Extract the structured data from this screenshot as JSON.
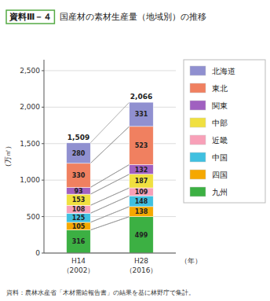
{
  "chart_data": {
    "type": "bar",
    "stacked": true,
    "data_labels": true,
    "grid": true,
    "legend": "right",
    "title": "国産材の素材生産量（地域別）の推移",
    "title_label": "資料Ⅲ－４",
    "ylabel": "（万㎥）",
    "xlabel": "（年）",
    "source": "資料：農林水産省「木材需給報告書」の結果を基に林野庁で集計。",
    "categories": [
      "H14\n（2002）",
      "H28\n（2016）"
    ],
    "series": [
      {
        "name": "九州",
        "color": "#3cb043",
        "values": [
          316,
          499
        ]
      },
      {
        "name": "四国",
        "color": "#f5a800",
        "values": [
          105,
          138
        ]
      },
      {
        "name": "中国",
        "color": "#40c0e0",
        "values": [
          125,
          148
        ]
      },
      {
        "name": "近畿",
        "color": "#f8a0b8",
        "values": [
          108,
          109
        ]
      },
      {
        "name": "中部",
        "color": "#f0e040",
        "values": [
          153,
          187
        ]
      },
      {
        "name": "関東",
        "color": "#a060c0",
        "values": [
          93,
          132
        ]
      },
      {
        "name": "東北",
        "color": "#f08060",
        "values": [
          330,
          523
        ]
      },
      {
        "name": "北海道",
        "color": "#9090d0",
        "values": [
          280,
          331
        ]
      }
    ],
    "totals": [
      1509,
      2066
    ],
    "total_labels": [
      "1,509",
      "2,066"
    ],
    "ylim": [
      0,
      2650
    ],
    "yticks": [
      0,
      500,
      {
        "value": 1000,
        "label": "1,000"
      },
      {
        "value": 1500,
        "label": "1,500"
      },
      {
        "value": 2000,
        "label": "2,000"
      },
      {
        "value": 2500,
        "label": "2,500"
      }
    ]
  }
}
